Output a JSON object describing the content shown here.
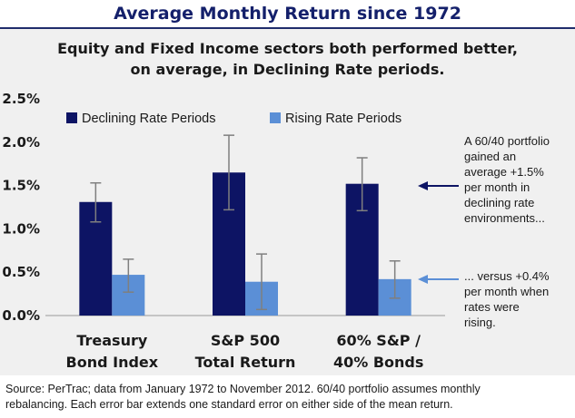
{
  "title": "Average Monthly Return since 1972",
  "subtitle_line1": "Equity and Fixed Income sectors both performed better,",
  "subtitle_line2": "on average, in Declining Rate periods.",
  "notes": {
    "top": [
      "A 60/40 portfolio",
      "gained an",
      "average +1.5%",
      "per month in",
      "declining rate",
      "environments..."
    ],
    "bottom": [
      "... versus +0.4%",
      "per month when",
      "rates were",
      "rising."
    ]
  },
  "footer": {
    "line1": "Source: PerTrac; data from January 1972 to November 2012. 60/40 portfolio assumes monthly",
    "line2": "rebalancing. Each error bar extends one standard error on either side of the mean return."
  },
  "colors": {
    "declining": "#0d1464",
    "rising": "#5b8fd6",
    "error_bar": "#7f7f7f",
    "title": "#14206b"
  },
  "chart_data": {
    "type": "bar",
    "categories": [
      [
        "Treasury",
        "Bond Index"
      ],
      [
        "S&P 500",
        "Total Return"
      ],
      [
        "60% S&P /",
        "40% Bonds"
      ]
    ],
    "series": [
      {
        "name": "Declining Rate Periods",
        "values": [
          1.31,
          1.65,
          1.52
        ],
        "error_low": [
          1.08,
          1.22,
          1.21
        ],
        "error_high": [
          1.53,
          2.08,
          1.82
        ]
      },
      {
        "name": "Rising Rate Periods",
        "values": [
          0.47,
          0.39,
          0.42
        ],
        "error_low": [
          0.27,
          0.07,
          0.2
        ],
        "error_high": [
          0.65,
          0.71,
          0.63
        ]
      }
    ],
    "yticks": [
      "0.0%",
      "0.5%",
      "1.0%",
      "1.5%",
      "2.0%",
      "2.5%"
    ],
    "ylim": [
      0,
      2.5
    ],
    "legend": "top"
  }
}
